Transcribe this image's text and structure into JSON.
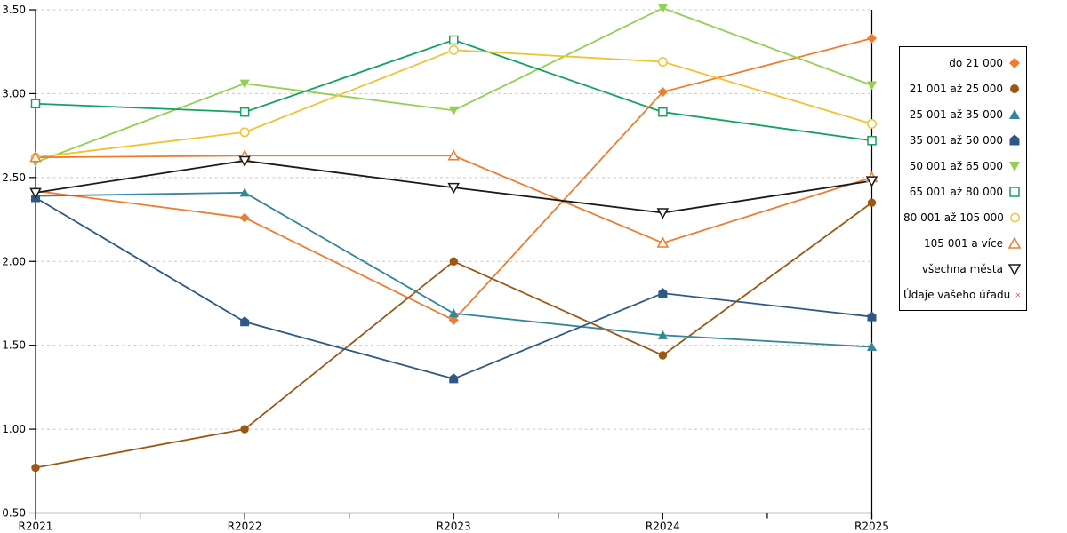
{
  "chart_data": {
    "type": "line",
    "title": "",
    "xlabel": "",
    "ylabel": "",
    "x_categories": [
      "R2021",
      "R2022",
      "R2023",
      "R2024",
      "R2025"
    ],
    "y_tick_labels": [
      "0.50",
      "1.00",
      "1.50",
      "2.00",
      "2.50",
      "3.00",
      "3.50"
    ],
    "ylim": [
      0.5,
      3.5
    ],
    "grid": "horizontal-dashed",
    "legend_position": "right",
    "series": [
      {
        "name": "do 21 000",
        "marker": "diamond",
        "fill": "filled",
        "color": "#ED7D31",
        "values": [
          2.42,
          2.26,
          1.65,
          3.01,
          3.33
        ]
      },
      {
        "name": "21 001 až 25 000",
        "marker": "circle",
        "fill": "filled",
        "color": "#9C5714",
        "values": [
          0.77,
          1.0,
          2.0,
          1.44,
          2.35
        ]
      },
      {
        "name": "25 001 až 35 000",
        "marker": "triangle-up",
        "fill": "filled",
        "color": "#35869A",
        "values": [
          2.39,
          2.41,
          1.69,
          1.56,
          1.49
        ]
      },
      {
        "name": "35 001 až 50 000",
        "marker": "pentagon",
        "fill": "filled",
        "color": "#2E5984",
        "values": [
          2.38,
          1.64,
          1.3,
          1.81,
          1.67
        ]
      },
      {
        "name": "50 001 až 65 000",
        "marker": "triangle-down",
        "fill": "filled",
        "color": "#92D050",
        "values": [
          2.59,
          3.06,
          2.9,
          3.51,
          3.05
        ]
      },
      {
        "name": "65 001 až 80 000",
        "marker": "square",
        "fill": "open",
        "color": "#14A35E",
        "values": [
          2.94,
          2.89,
          3.32,
          2.89,
          2.72
        ]
      },
      {
        "name": "80 001 až 105 000",
        "marker": "circle",
        "fill": "open",
        "color": "#F1C232",
        "values": [
          2.62,
          2.77,
          3.26,
          3.19,
          2.82
        ]
      },
      {
        "name": "105 001 a více",
        "marker": "triangle-up",
        "fill": "open",
        "color": "#ED7D31",
        "values": [
          2.62,
          2.63,
          2.63,
          2.11,
          2.5
        ]
      },
      {
        "name": "všechna města",
        "marker": "triangle-down",
        "fill": "open",
        "color": "#1A1A1A",
        "values": [
          2.41,
          2.6,
          2.44,
          2.29,
          2.48
        ]
      },
      {
        "name": "Údaje vašeho úřadu",
        "marker": "x",
        "fill": "open",
        "color": "#DD2222",
        "values": []
      }
    ],
    "colors": {
      "gridline": "#C8C8C8",
      "axis": "#000000",
      "background": "#FFFFFF"
    }
  }
}
